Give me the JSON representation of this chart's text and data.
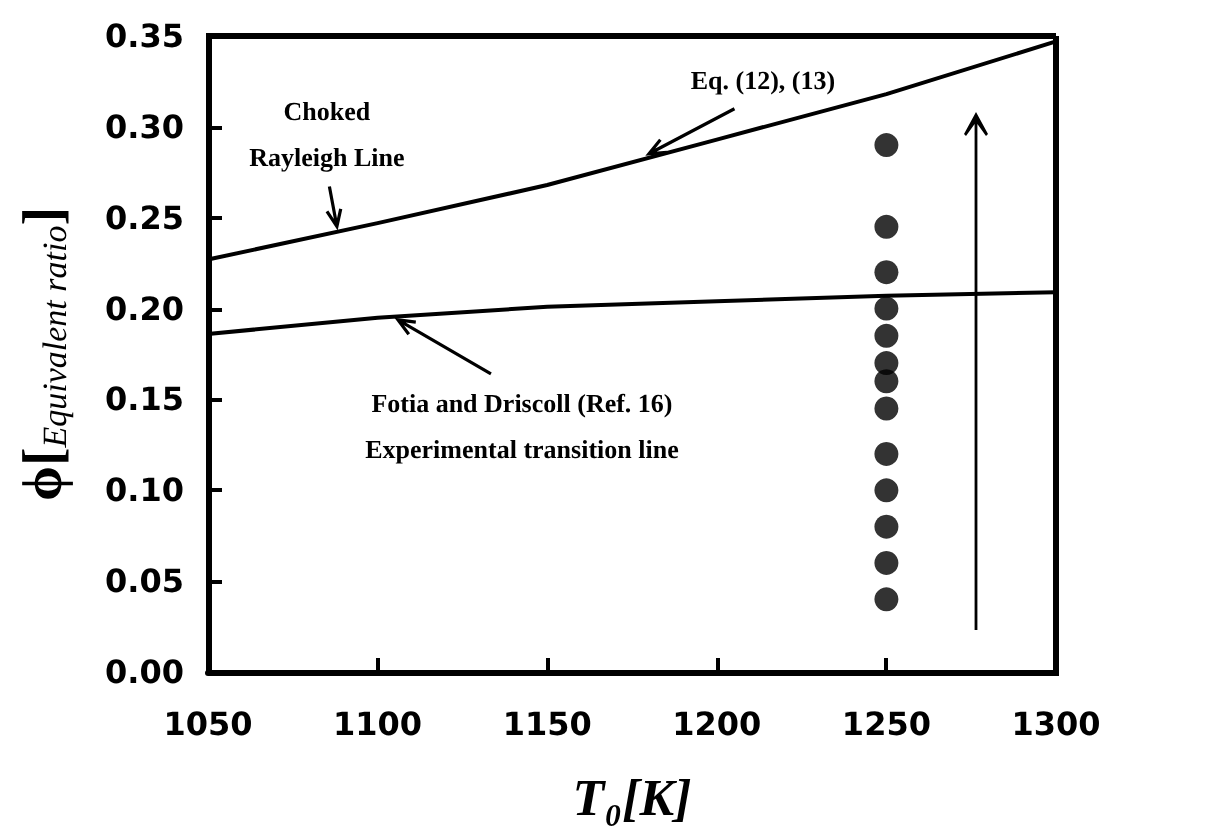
{
  "chart_data": {
    "type": "line",
    "xlabel": "T₀[K]",
    "ylabel": "ϕ[$_{Equivalent ratio}$]",
    "xlim": [
      1050,
      1300
    ],
    "xticks": [
      1050,
      1100,
      1150,
      1200,
      1250,
      1300
    ],
    "ylim": [
      0,
      0.35
    ],
    "yticks": [
      {
        "value": 0,
        "label": "0.00"
      },
      {
        "value": 0.05,
        "label": "0.05"
      },
      {
        "value": 0.1,
        "label": "0.10"
      },
      {
        "value": 0.15,
        "label": "0.15"
      },
      {
        "value": 0.2,
        "label": "0.20"
      },
      {
        "value": 0.25,
        "label": "0.25"
      },
      {
        "value": 0.3,
        "label": "0.30"
      },
      {
        "value": 0.35,
        "label": "0.35"
      }
    ],
    "grid": false,
    "marker": "none",
    "line_style": "solid",
    "series": [
      {
        "color": "#000000",
        "x": [
          1050,
          1100,
          1150,
          1200,
          1250,
          1300
        ],
        "values": [
          0.227,
          0.247,
          0.268,
          0.293,
          0.318,
          0.347
        ]
      },
      {
        "color": "#000000",
        "x": [
          1050,
          1100,
          1150,
          1200,
          1250,
          1300
        ],
        "values": [
          0.186,
          0.195,
          0.201,
          0.204,
          0.207,
          0.209
        ]
      },
      {
        "type": "scatter",
        "color": "#000000",
        "marker": "circle",
        "x": [
          1250,
          1250,
          1250,
          1250,
          1250,
          1250,
          1250,
          1250,
          1250,
          1250,
          1250,
          1250,
          1250
        ],
        "values": [
          0.29,
          0.245,
          0.22,
          0.2,
          0.185,
          0.17,
          0.16,
          0.145,
          0.12,
          0.1,
          0.08,
          0.06,
          0.04
        ]
      }
    ],
    "annotations": [
      {
        "text": "Choked\nRayleigh Line",
        "x": 1088,
        "y": 0.243
      },
      {
        "text": "Eq. (12), (13)",
        "x": 1180,
        "y": 0.283
      },
      {
        "text": "Fotia and Driscoll (Ref. 16)\nExperimental transition line",
        "x": 1106,
        "y": 0.196
      }
    ]
  }
}
